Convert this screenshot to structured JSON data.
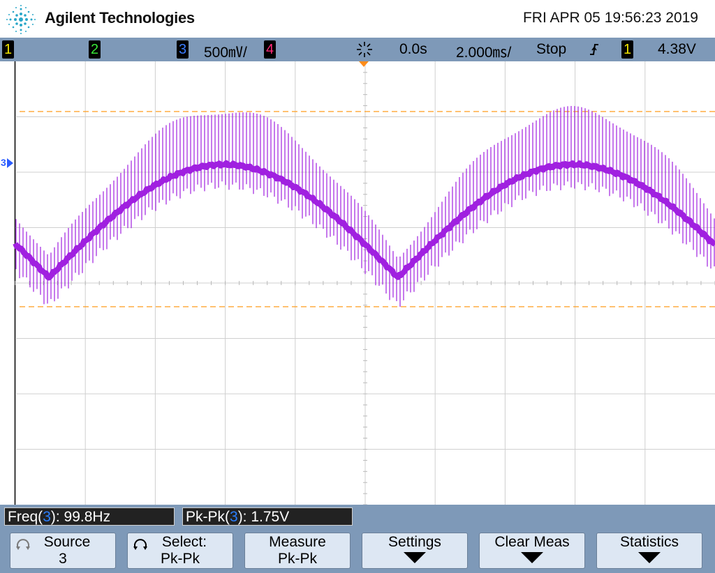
{
  "header": {
    "brand": "Agilent Technologies",
    "datetime": "FRI APR 05 19:56:23 2019"
  },
  "status_bar": {
    "ch1": "1",
    "ch2": "2",
    "ch3": "3",
    "ch3_scale": "500㎷/",
    "ch4": "4",
    "time_ref": "0.0s",
    "time_scale": "2.000㎳/",
    "run_state": "Stop",
    "trig_edge": "f",
    "trig_source": "1",
    "trig_level": "4.38V",
    "colors": {
      "ch1": "#f2e600",
      "ch2": "#39e639",
      "ch3": "#3a7cff",
      "ch4": "#ff2b7a"
    }
  },
  "screen": {
    "ch3_marker": "3",
    "trace_color": "#a020e0",
    "cursor_color": "#ff9c1a",
    "grid_divisions": {
      "horizontal": 10,
      "vertical": 8
    }
  },
  "measurements": [
    {
      "label": "Freq(",
      "source": "3",
      "suffix": "): 99.8Hz"
    },
    {
      "label": "Pk-Pk(",
      "source": "3",
      "suffix": "): 1.75V"
    }
  ],
  "softkeys": [
    {
      "line1": "Source",
      "line2": "3",
      "icon": "rotate-knob-icon"
    },
    {
      "line1": "Select:",
      "line2": "Pk-Pk",
      "icon": "rotate-knob-icon"
    },
    {
      "line1": "Measure",
      "line2": "Pk-Pk"
    },
    {
      "line1": "Settings",
      "line2": "",
      "icon": "down-arrow-icon"
    },
    {
      "line1": "Clear Meas",
      "line2": "",
      "icon": "down-arrow-icon"
    },
    {
      "line1": "Statistics",
      "line2": "",
      "icon": "down-arrow-icon"
    }
  ]
}
